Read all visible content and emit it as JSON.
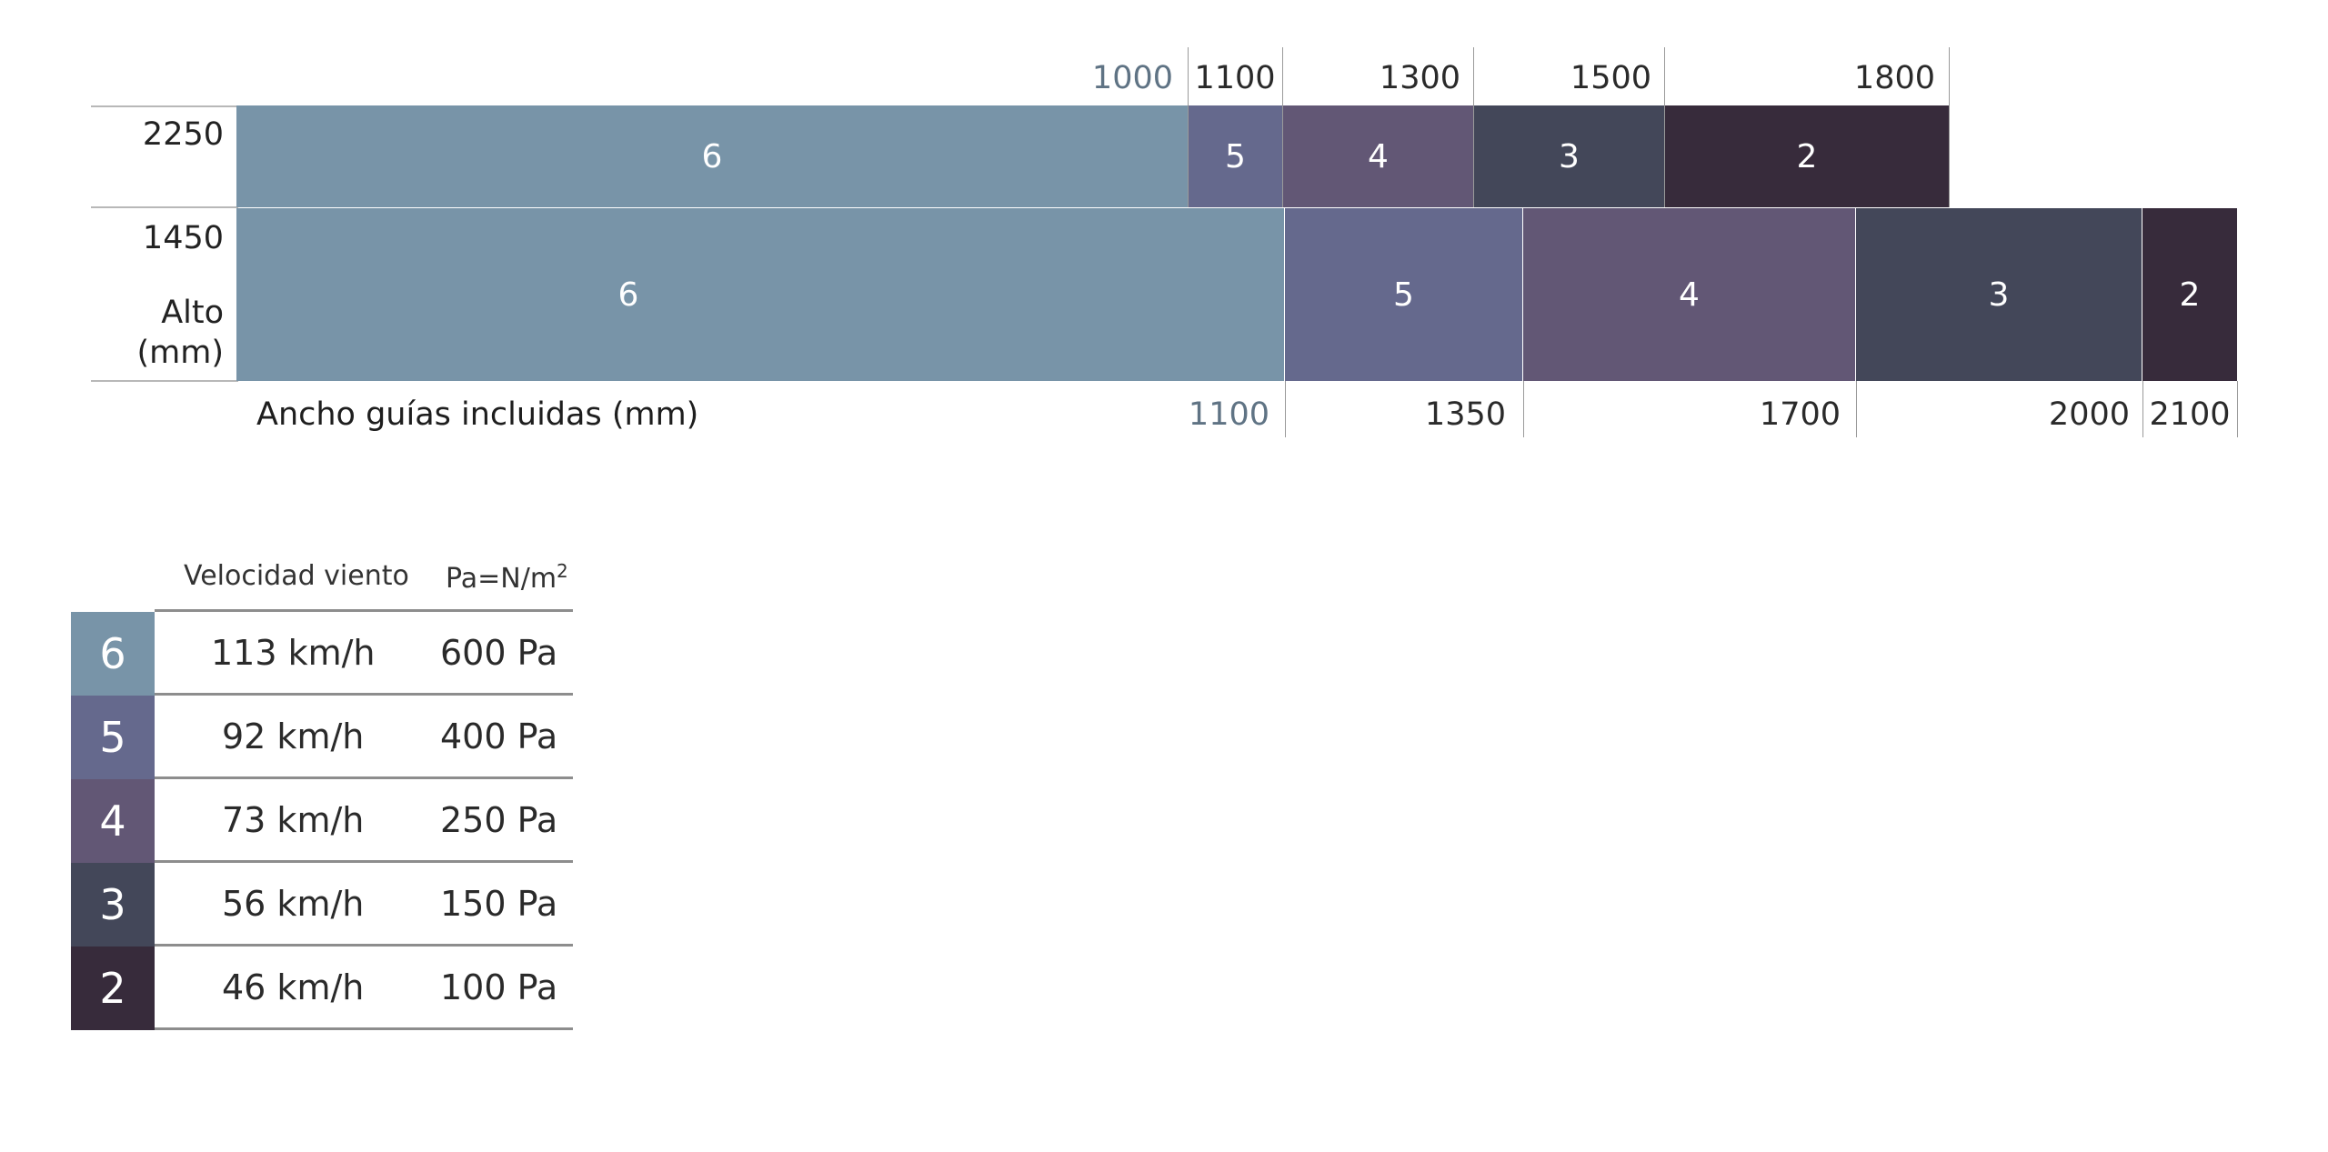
{
  "chart": {
    "top_ticks": [
      "1000",
      "1100",
      "1300",
      "1500",
      "1800"
    ],
    "bottom_ticks": [
      "1100",
      "1350",
      "1700",
      "2000",
      "2100"
    ],
    "row_top_label": "2250",
    "row_bottom_label": "1450",
    "y_axis_title_line1": "Alto",
    "y_axis_title_line2": "(mm)",
    "x_axis_title": "Ancho guías incluidas (mm)",
    "row_top_cells": [
      "6",
      "5",
      "4",
      "3",
      "2"
    ],
    "row_bottom_cells": [
      "6",
      "5",
      "4",
      "3",
      "2"
    ],
    "colors": {
      "class_6": "#7894a8",
      "class_5": "#65698d",
      "class_4": "#625775",
      "class_3": "#434759",
      "class_2": "#372b3b"
    }
  },
  "legend": {
    "header_speed": "Velocidad viento",
    "header_pressure": "Pa=N/m",
    "header_pressure_sup": "2",
    "rows": [
      {
        "class": "6",
        "speed": "113 km/h",
        "pressure": "600 Pa"
      },
      {
        "class": "5",
        "speed": "92 km/h",
        "pressure": "400 Pa"
      },
      {
        "class": "4",
        "speed": "73 km/h",
        "pressure": "250 Pa"
      },
      {
        "class": "3",
        "speed": "56 km/h",
        "pressure": "150 Pa"
      },
      {
        "class": "2",
        "speed": "46 km/h",
        "pressure": "100 Pa"
      }
    ]
  }
}
